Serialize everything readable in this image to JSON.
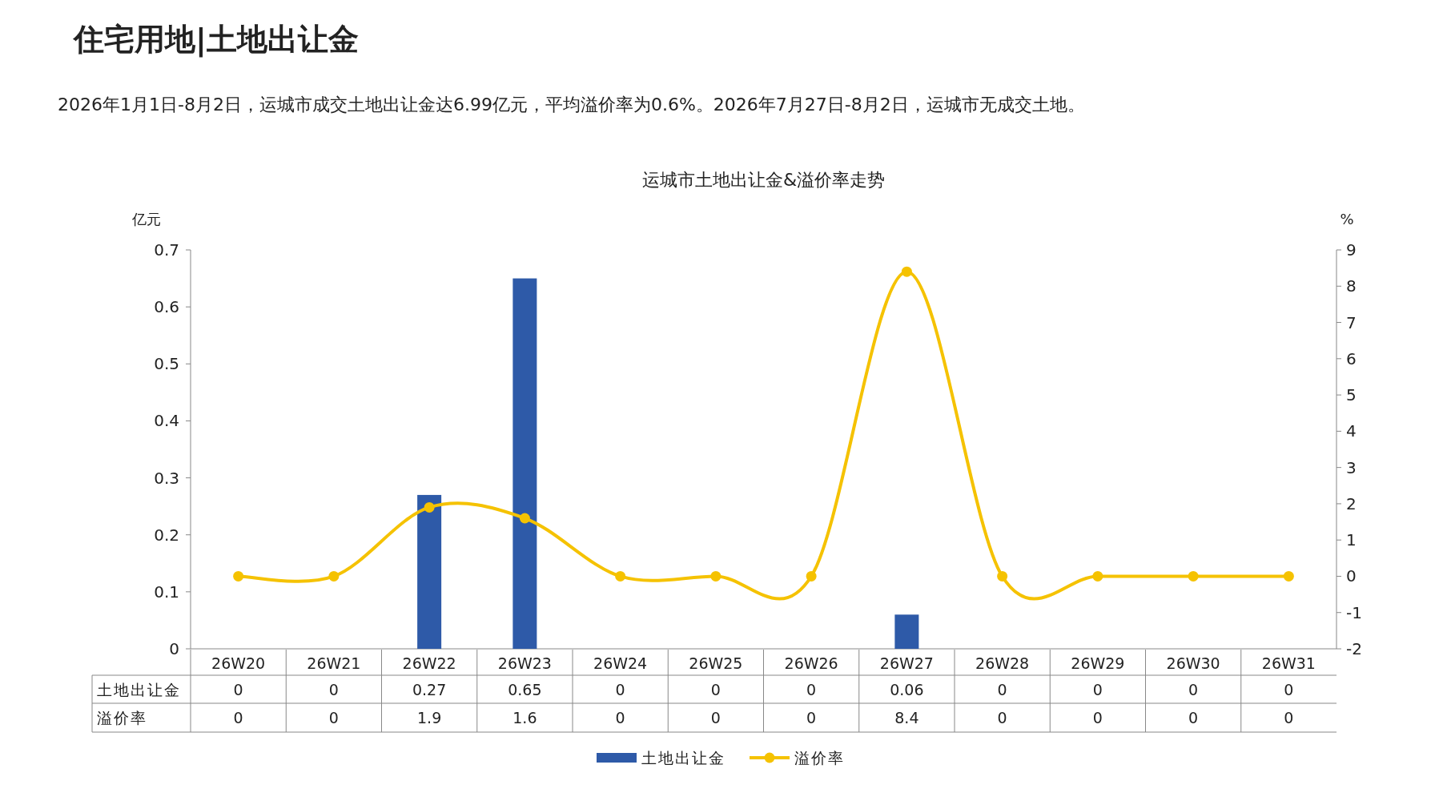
{
  "chart_data": {
    "type": "bar",
    "title": "运城市土地出让金&溢价率走势",
    "annotations": [
      "住宅用地|土地出让金",
      "2026年1月1日-8月2日，运城市成交土地出让金达6.99亿元，平均溢价率为0.6%。2026年7月27日-8月2日，运城市无成交土地。"
    ],
    "ylabel": "亿元",
    "y2label": "%",
    "categories": [
      "26W20",
      "26W21",
      "26W22",
      "26W23",
      "26W24",
      "26W25",
      "26W26",
      "26W27",
      "26W28",
      "26W29",
      "26W30",
      "26W31"
    ],
    "ylim": [
      0,
      0.7
    ],
    "yticks": [
      0,
      0.1,
      0.2,
      0.3,
      0.4,
      0.5,
      0.6,
      0.7
    ],
    "y2lim": [
      -2,
      9
    ],
    "y2ticks": [
      -2,
      -1,
      0,
      1,
      2,
      3,
      4,
      5,
      6,
      7,
      8,
      9
    ],
    "series": [
      {
        "name": "土地出让金",
        "color": "#2e5aa8",
        "values": [
          0,
          0,
          0.27,
          0.65,
          0,
          0,
          0,
          0.06,
          0,
          0,
          0,
          0
        ]
      },
      {
        "name": "溢价率",
        "type": "line",
        "axis": "y2",
        "color": "#f5c200",
        "marker": "circle",
        "values": [
          0,
          0,
          1.9,
          1.6,
          0,
          0,
          0,
          8.4,
          0,
          0,
          0,
          0
        ]
      }
    ],
    "data_labels": true,
    "legend": "bottom"
  }
}
